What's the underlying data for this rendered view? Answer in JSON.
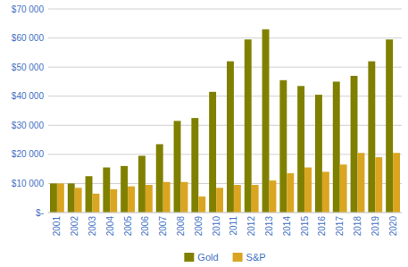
{
  "chart_data": {
    "type": "bar",
    "categories": [
      "2001",
      "2002",
      "2003",
      "2004",
      "2005",
      "2006",
      "2007",
      "2008",
      "2009",
      "2010",
      "2011",
      "2012",
      "2013",
      "2014",
      "2015",
      "2016",
      "2017",
      "2018",
      "2019",
      "2020"
    ],
    "series": [
      {
        "name": "Gold",
        "color": "#808000",
        "values": [
          10000,
          10000,
          12500,
          15500,
          16000,
          19500,
          23500,
          31500,
          32500,
          41500,
          52000,
          59500,
          63000,
          45500,
          43500,
          40500,
          45000,
          47000,
          52000,
          59500
        ]
      },
      {
        "name": "S&P",
        "color": "#DAA520",
        "values": [
          10000,
          8500,
          6500,
          8000,
          9000,
          9500,
          10500,
          10500,
          5500,
          8500,
          9500,
          9500,
          11000,
          13500,
          15500,
          14000,
          16500,
          20500,
          19000,
          20500
        ]
      }
    ],
    "ylim": [
      0,
      70000
    ],
    "yticks": [
      {
        "value": 0,
        "label": "$-"
      },
      {
        "value": 10000,
        "label": "$10 000"
      },
      {
        "value": 20000,
        "label": "$20 000"
      },
      {
        "value": 30000,
        "label": "$30 000"
      },
      {
        "value": 40000,
        "label": "$40 000"
      },
      {
        "value": 50000,
        "label": "$50 000"
      },
      {
        "value": 60000,
        "label": "$60 000"
      },
      {
        "value": 70000,
        "label": "$70 000"
      }
    ],
    "grid": true,
    "legend": "bottom"
  }
}
